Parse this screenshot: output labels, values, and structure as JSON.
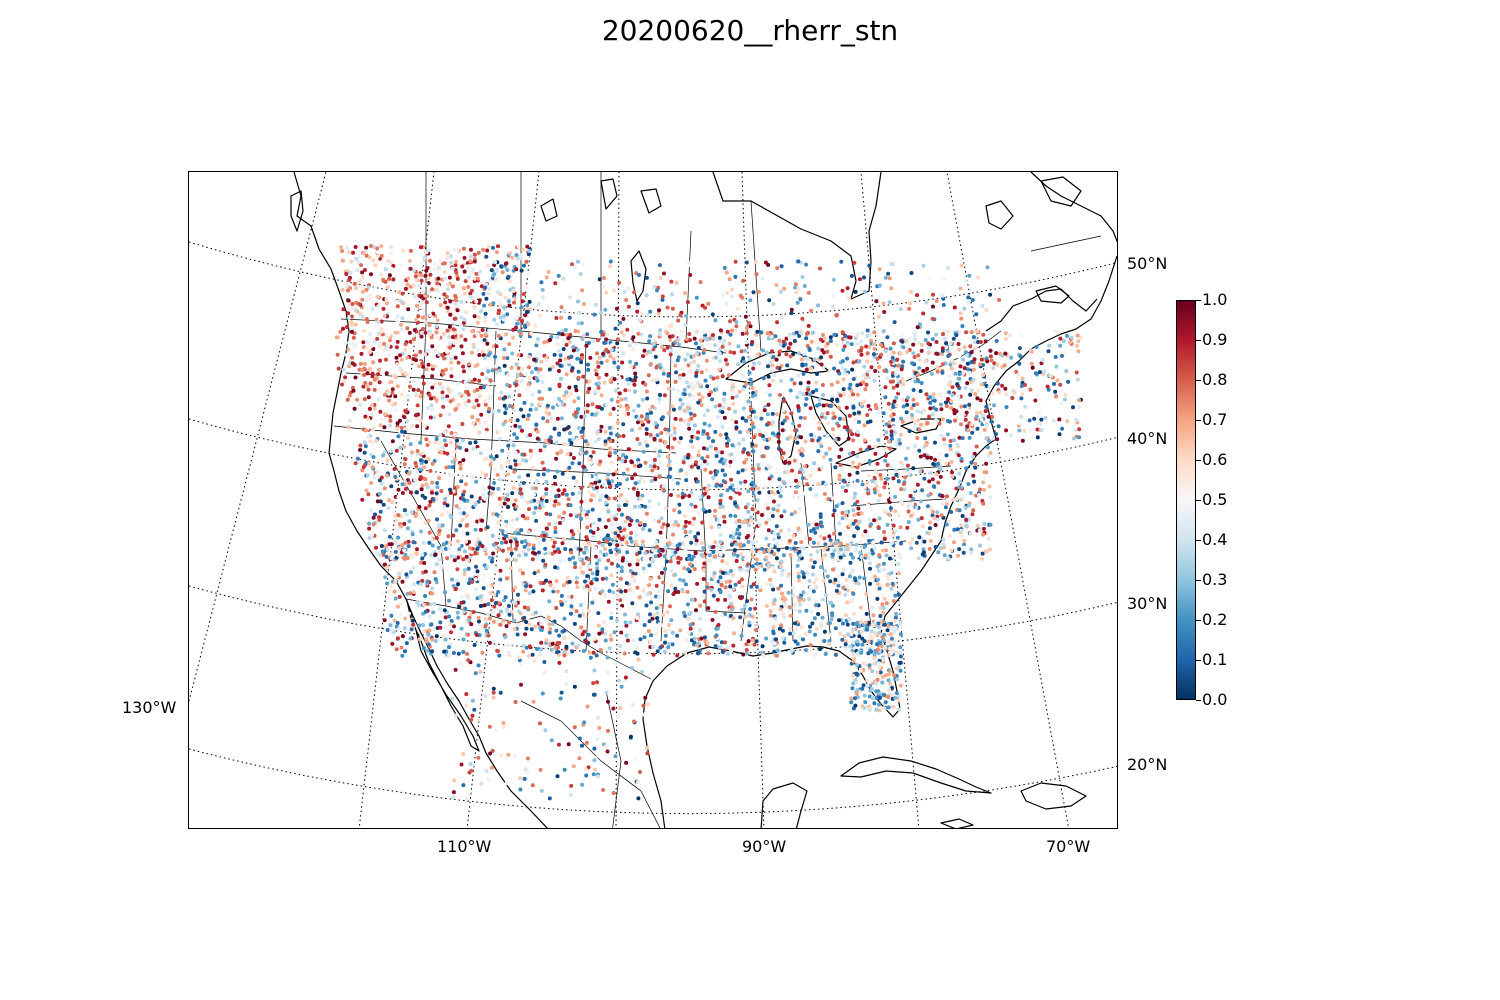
{
  "title": "20200620__rherr_stn",
  "map": {
    "projection": "lambert-conformal",
    "graticule_style": "dotted",
    "lat_labels": [
      "50°N",
      "40°N",
      "30°N",
      "20°N"
    ],
    "lon_labels_bottom": [
      "110°W",
      "90°W",
      "70°W"
    ],
    "lon_label_left": "130°W",
    "land_outline_color": "#000000",
    "background": "#ffffff"
  },
  "colorbar": {
    "colormap": "RdBu_r",
    "min": 0.0,
    "max": 1.0,
    "ticks": [
      "0.0",
      "0.1",
      "0.2",
      "0.3",
      "0.4",
      "0.5",
      "0.6",
      "0.7",
      "0.8",
      "0.9",
      "1.0"
    ],
    "stops": [
      "#053061",
      "#2166ac",
      "#4393c3",
      "#92c5de",
      "#d1e5f0",
      "#f7f7f7",
      "#fddbc7",
      "#f4a582",
      "#d6604d",
      "#b2182b",
      "#67001f"
    ]
  }
}
